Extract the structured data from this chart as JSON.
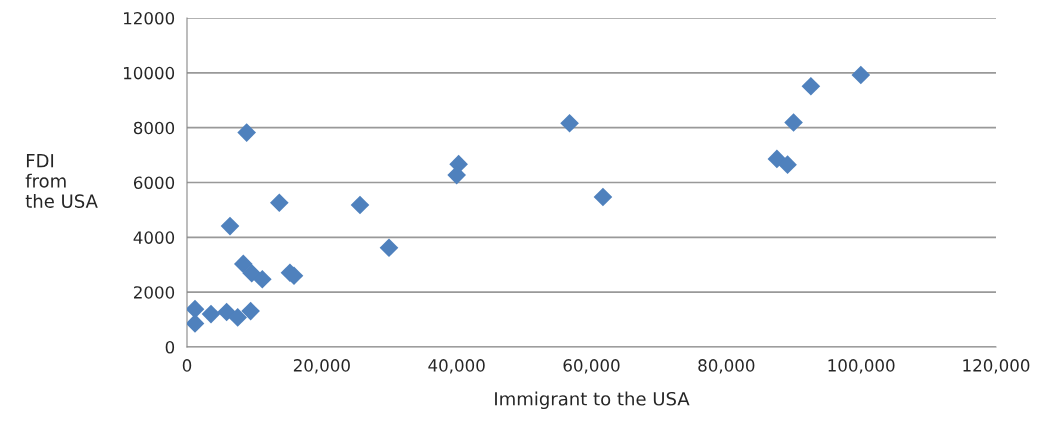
{
  "chart_data": {
    "type": "scatter",
    "xlabel": "Immigrant to the USA",
    "ylabel": "FDI\nfrom\nthe USA",
    "series": [
      {
        "color": "#4f81bd",
        "x": [
          1190,
          1190,
          3560,
          5880,
          7520,
          9440,
          8350,
          9600,
          11170,
          15270,
          15870,
          6380,
          13690,
          25660,
          29960,
          8850,
          40290,
          40000,
          56750,
          61700,
          92540,
          99950,
          89970,
          87500,
          89080
        ],
        "values": [
          1380,
          860,
          1200,
          1275,
          1080,
          1310,
          3030,
          2690,
          2470,
          2710,
          2600,
          4410,
          5260,
          5180,
          3620,
          7820,
          6670,
          6270,
          8160,
          5470,
          9510,
          9920,
          8190,
          6860,
          6650
        ]
      }
    ],
    "marker": "diamond",
    "xlim": [
      0,
      120000
    ],
    "xticks": [
      0,
      {
        "value": 20000,
        "label": "20,000"
      },
      {
        "value": 40000,
        "label": "40,000"
      },
      {
        "value": 60000,
        "label": "60,000"
      },
      {
        "value": 80000,
        "label": "80,000"
      },
      {
        "value": 100000,
        "label": "100,000"
      },
      {
        "value": 120000,
        "label": "120,000"
      }
    ],
    "ylim": [
      0,
      12000
    ],
    "yticks": [
      0,
      2000,
      4000,
      6000,
      8000,
      10000,
      12000
    ],
    "grid": "y",
    "legend": false
  }
}
